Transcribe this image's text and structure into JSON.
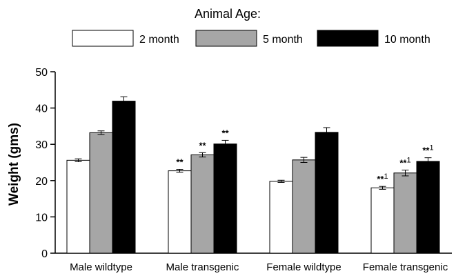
{
  "chart_data": {
    "type": "bar",
    "legend_title": "Animal Age:",
    "legend_position": "top",
    "categories": [
      "Male wildtype",
      "Male transgenic",
      "Female wildtype",
      "Female transgenic"
    ],
    "series": [
      {
        "name": "2 month",
        "color": "#ffffff",
        "values": [
          25.6,
          22.7,
          19.8,
          18.0
        ],
        "errors": [
          0.4,
          0.4,
          0.3,
          0.4
        ]
      },
      {
        "name": "5 month",
        "color": "#a6a6a6",
        "values": [
          33.2,
          27.1,
          25.7,
          22.1
        ],
        "errors": [
          0.5,
          0.6,
          0.7,
          0.8
        ]
      },
      {
        "name": "10 month",
        "color": "#000000",
        "values": [
          41.9,
          30.1,
          33.3,
          25.3
        ],
        "errors": [
          1.2,
          1.0,
          1.3,
          1.0
        ]
      }
    ],
    "annotations": [
      [
        null,
        null,
        null
      ],
      [
        "**",
        "**",
        "**"
      ],
      [
        null,
        null,
        null
      ],
      [
        "**1",
        "**1",
        "**1"
      ]
    ],
    "ylabel": "Weight (gms)",
    "xlabel": "",
    "ylim": [
      0,
      50
    ],
    "yticks": [
      0,
      10,
      20,
      30,
      40,
      50
    ],
    "grid": false
  }
}
